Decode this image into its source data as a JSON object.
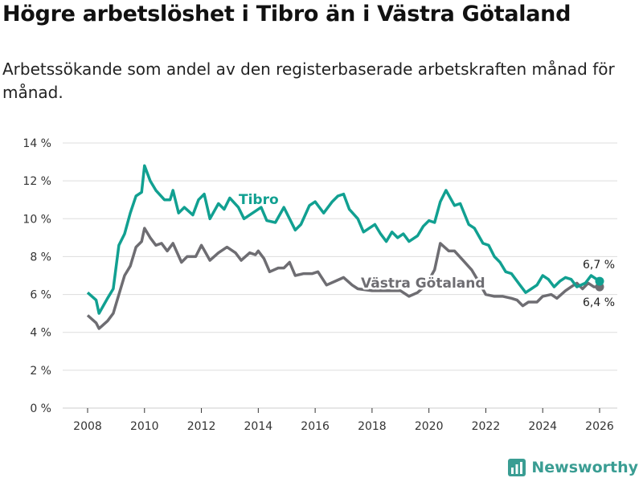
{
  "title": "Högre arbetslöshet i Tibro än i Västra Götaland",
  "subtitle": "Arbetssökande som andel av den registerbaserade arbetskraften månad för månad.",
  "brand": "Newsworthy",
  "colors": {
    "tibro": "#11a091",
    "vg": "#6e6d72",
    "grid": "#dddddd"
  },
  "chart_data": {
    "type": "line",
    "ylim": [
      0,
      14
    ],
    "xlim": [
      2008,
      2026
    ],
    "yticks": [
      0,
      2,
      4,
      6,
      8,
      10,
      12,
      14
    ],
    "ytick_labels": [
      "0 %",
      "2 %",
      "4 %",
      "6 %",
      "8 %",
      "10 %",
      "12 %",
      "14 %"
    ],
    "xticks": [
      2008,
      2010,
      2012,
      2014,
      2016,
      2018,
      2020,
      2022,
      2024,
      2026
    ],
    "xtick_labels": [
      "2008",
      "2010",
      "2012",
      "2014",
      "2016",
      "2018",
      "2020",
      "2022",
      "2024",
      "2026"
    ],
    "grid": true,
    "series": [
      {
        "name": "Tibro",
        "end_label": "6,7 %",
        "x": [
          2008.0,
          2008.3,
          2008.4,
          2008.7,
          2008.9,
          2009.1,
          2009.3,
          2009.5,
          2009.7,
          2009.9,
          2010.0,
          2010.2,
          2010.4,
          2010.7,
          2010.9,
          2011.0,
          2011.2,
          2011.4,
          2011.7,
          2011.9,
          2012.1,
          2012.3,
          2012.6,
          2012.8,
          2013.0,
          2013.3,
          2013.5,
          2014.1,
          2014.3,
          2014.6,
          2014.9,
          2015.1,
          2015.3,
          2015.5,
          2015.8,
          2016.0,
          2016.3,
          2016.6,
          2016.8,
          2017.0,
          2017.2,
          2017.5,
          2017.7,
          2017.9,
          2018.1,
          2018.3,
          2018.5,
          2018.7,
          2018.9,
          2019.1,
          2019.3,
          2019.6,
          2019.8,
          2020.0,
          2020.2,
          2020.4,
          2020.6,
          2020.9,
          2021.1,
          2021.4,
          2021.6,
          2021.9,
          2022.1,
          2022.3,
          2022.5,
          2022.7,
          2022.9,
          2023.2,
          2023.4,
          2023.6,
          2023.8,
          2024.0,
          2024.2,
          2024.4,
          2024.6,
          2024.8,
          2025.0,
          2025.2,
          2025.5,
          2025.7,
          2026.0
        ],
        "values": [
          6.1,
          5.7,
          5.0,
          5.8,
          6.3,
          8.6,
          9.2,
          10.3,
          11.2,
          11.4,
          12.8,
          12.0,
          11.5,
          11.0,
          11.0,
          11.5,
          10.3,
          10.6,
          10.2,
          11.0,
          11.3,
          10.0,
          10.8,
          10.5,
          11.1,
          10.6,
          10.0,
          10.6,
          9.9,
          9.8,
          10.6,
          10.0,
          9.4,
          9.7,
          10.7,
          10.9,
          10.3,
          10.9,
          11.2,
          11.3,
          10.5,
          10.0,
          9.3,
          9.5,
          9.7,
          9.2,
          8.8,
          9.3,
          9.0,
          9.2,
          8.8,
          9.1,
          9.6,
          9.9,
          9.8,
          10.9,
          11.5,
          10.7,
          10.8,
          9.7,
          9.5,
          8.7,
          8.6,
          8.0,
          7.7,
          7.2,
          7.1,
          6.5,
          6.1,
          6.3,
          6.5,
          7.0,
          6.8,
          6.4,
          6.7,
          6.9,
          6.8,
          6.4,
          6.6,
          7.0,
          6.7
        ]
      },
      {
        "name": "Västra Götaland",
        "end_label": "6,4 %",
        "x": [
          2008.0,
          2008.3,
          2008.4,
          2008.7,
          2008.9,
          2009.1,
          2009.3,
          2009.5,
          2009.7,
          2009.9,
          2010.0,
          2010.2,
          2010.4,
          2010.6,
          2010.8,
          2011.0,
          2011.3,
          2011.5,
          2011.8,
          2012.0,
          2012.3,
          2012.6,
          2012.9,
          2013.2,
          2013.4,
          2013.7,
          2013.9,
          2014.0,
          2014.2,
          2014.4,
          2014.7,
          2014.9,
          2015.1,
          2015.3,
          2015.6,
          2015.9,
          2016.1,
          2016.4,
          2016.7,
          2017.0,
          2017.3,
          2017.5,
          2018.0,
          2018.5,
          2019.0,
          2019.3,
          2019.6,
          2019.9,
          2020.2,
          2020.4,
          2020.7,
          2020.9,
          2021.2,
          2021.5,
          2021.7,
          2022.0,
          2022.3,
          2022.6,
          2022.9,
          2023.1,
          2023.3,
          2023.5,
          2023.8,
          2024.0,
          2024.3,
          2024.5,
          2024.8,
          2025.0,
          2025.2,
          2025.4,
          2025.6,
          2025.8,
          2026.0
        ],
        "values": [
          4.9,
          4.5,
          4.2,
          4.6,
          5.0,
          6.0,
          7.0,
          7.5,
          8.5,
          8.8,
          9.5,
          9.0,
          8.6,
          8.7,
          8.3,
          8.7,
          7.7,
          8.0,
          8.0,
          8.6,
          7.8,
          8.2,
          8.5,
          8.2,
          7.8,
          8.2,
          8.1,
          8.3,
          7.9,
          7.2,
          7.4,
          7.4,
          7.7,
          7.0,
          7.1,
          7.1,
          7.2,
          6.5,
          6.7,
          6.9,
          6.5,
          6.3,
          6.2,
          6.2,
          6.2,
          5.9,
          6.1,
          6.5,
          7.3,
          8.7,
          8.3,
          8.3,
          7.8,
          7.3,
          6.8,
          6.0,
          5.9,
          5.9,
          5.8,
          5.7,
          5.4,
          5.6,
          5.6,
          5.9,
          6.0,
          5.8,
          6.2,
          6.4,
          6.6,
          6.3,
          6.6,
          6.4,
          6.4
        ]
      }
    ]
  }
}
